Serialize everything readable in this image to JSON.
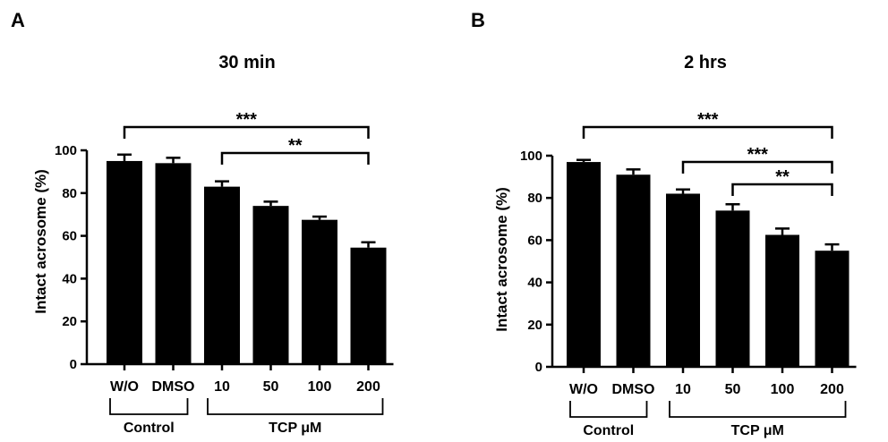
{
  "chart_data": [
    {
      "panel": "A",
      "type": "bar",
      "title": "30 min",
      "ylabel": "Intact acrosome (%)",
      "xlabel": "",
      "ylim": [
        0,
        100
      ],
      "yticks": [
        "0",
        "20",
        "40",
        "60",
        "80",
        "100"
      ],
      "categories": [
        "W/O",
        "DMSO",
        "10",
        "50",
        "100",
        "200"
      ],
      "values": [
        95,
        94,
        83,
        74,
        67.5,
        54.5
      ],
      "errors": [
        3,
        2.5,
        2.5,
        2,
        1.5,
        2.5
      ],
      "groups": [
        {
          "label": "Control",
          "from": 0,
          "to": 1
        },
        {
          "label": "TCP μM",
          "from": 2,
          "to": 5
        }
      ],
      "significance": [
        {
          "from": 0,
          "to": 5,
          "label": "***"
        },
        {
          "from": 2,
          "to": 5,
          "label": "**"
        }
      ]
    },
    {
      "panel": "B",
      "type": "bar",
      "title": "2 hrs",
      "ylabel": "Intact acrosome (%)",
      "xlabel": "",
      "ylim": [
        0,
        100
      ],
      "yticks": [
        "0",
        "20",
        "40",
        "60",
        "80",
        "100"
      ],
      "categories": [
        "W/O",
        "DMSO",
        "10",
        "50",
        "100",
        "200"
      ],
      "values": [
        97,
        91,
        82,
        74,
        62.5,
        55
      ],
      "errors": [
        1,
        2.5,
        2,
        3,
        3,
        3
      ],
      "groups": [
        {
          "label": "Control",
          "from": 0,
          "to": 1
        },
        {
          "label": "TCP μM",
          "from": 2,
          "to": 5
        }
      ],
      "significance": [
        {
          "from": 0,
          "to": 5,
          "label": "***"
        },
        {
          "from": 2,
          "to": 5,
          "label": "***"
        },
        {
          "from": 3,
          "to": 5,
          "label": "**"
        }
      ]
    }
  ],
  "colors": {
    "bar": "#000000",
    "axis": "#000000",
    "background": "#ffffff"
  }
}
